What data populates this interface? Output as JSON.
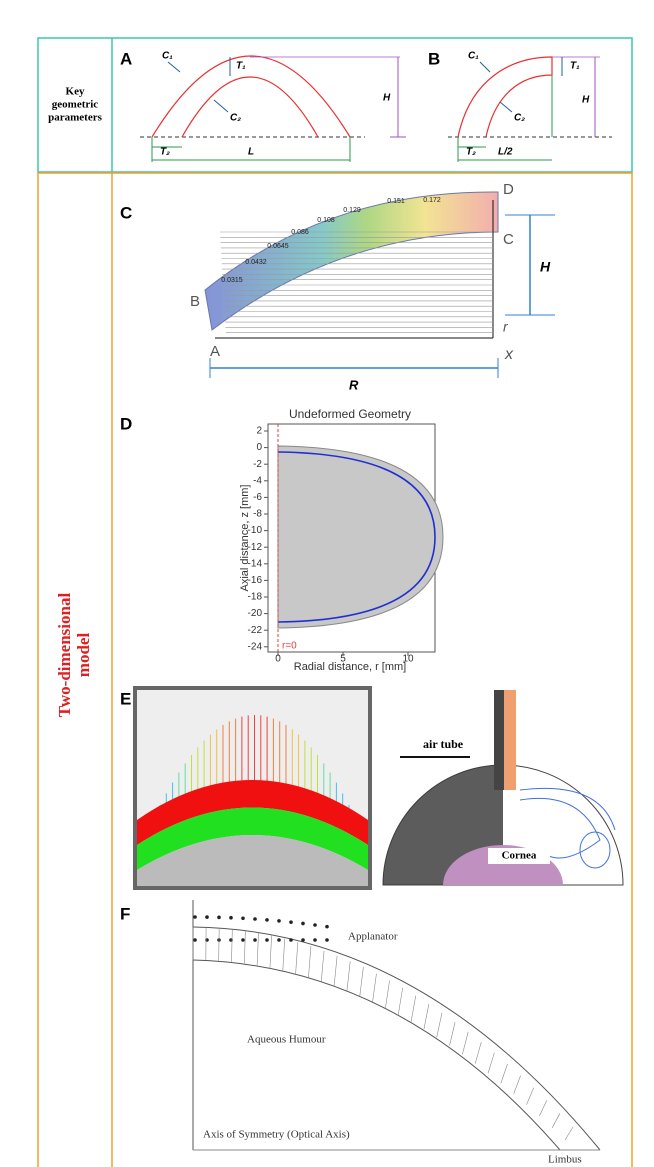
{
  "rows": [
    {
      "label": [
        "Key",
        "geometric",
        "parameters"
      ],
      "panels": [
        {
          "letter": "A",
          "labels": {
            "c1": "C₁",
            "c2": "C₂",
            "t1": "T₁",
            "t2": "T₂",
            "h": "H",
            "l": "L"
          }
        },
        {
          "letter": "B",
          "labels": {
            "c1": "C₁",
            "c2": "C₂",
            "t1": "T₁",
            "t2": "T₂",
            "h": "H",
            "l": "L/2"
          }
        }
      ]
    },
    {
      "label": [
        "Two-dimensional",
        "model"
      ],
      "panels": [
        {
          "letter": "C",
          "points": [
            "D",
            "C",
            "B",
            "A"
          ],
          "dims": {
            "h": "H",
            "r": "R",
            "rr": "r",
            "x": "x"
          },
          "values": [
            "0.0315",
            "0.0432",
            "0.0645",
            "0.086",
            "0.108",
            "0.129",
            "0.151",
            "0.172"
          ]
        },
        {
          "letter": "D",
          "title": "Undeformed Geometry",
          "xlabel": "Radial distance, r [mm]",
          "ylabel": "Axial distance, z [mm]",
          "xticks": [
            0,
            5,
            10
          ],
          "yticks": [
            2,
            0,
            -2,
            -4,
            -6,
            -8,
            -10,
            -12,
            -14,
            -16,
            -18,
            -20,
            -22,
            -24
          ],
          "axis_label": "r=0"
        },
        {
          "letter": "E",
          "labels": [
            "air tube",
            "Cornea"
          ]
        },
        {
          "letter": "F",
          "labels": [
            "Applanator",
            "Aqueous Humour",
            "Axis of Symmetry (Optical Axis)",
            "Limbus"
          ]
        }
      ]
    }
  ]
}
